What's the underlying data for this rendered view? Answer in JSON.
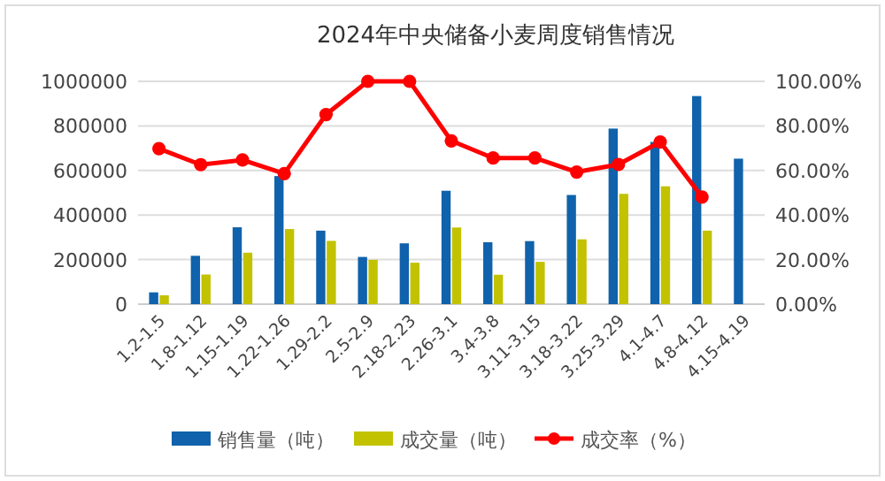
{
  "chart_data": {
    "type": "bar",
    "title": "2024年中央储备小麦周度销售情况",
    "categories": [
      "1.2-1.5",
      "1.8-1.12",
      "1.15-1.19",
      "1.22-1.26",
      "1.29-2.2",
      "2.5-2.9",
      "2.18-2.23",
      "2.26-3.1",
      "3.4-3.8",
      "3.11-3.15",
      "3.18-3.22",
      "3.25-3.29",
      "4.1-4.7",
      "4.8-4.12",
      "4.15-4.19"
    ],
    "series": [
      {
        "name": "销售量（吨）",
        "color": "#0f62ab",
        "values": [
          53000,
          217000,
          345000,
          575000,
          330000,
          212000,
          273000,
          509000,
          278000,
          283000,
          490000,
          788000,
          728000,
          934000,
          653000
        ]
      },
      {
        "name": "成交量（吨）",
        "color": "#c2c200",
        "values": [
          40000,
          133000,
          231000,
          337000,
          284000,
          199000,
          186000,
          344000,
          132000,
          190000,
          291000,
          495000,
          529000,
          330000,
          null
        ]
      },
      {
        "name": "成交率（%）",
        "type": "line",
        "axis": "y2",
        "color": "#ff0000",
        "marker": "circle",
        "values": [
          69.8,
          62.6,
          64.7,
          58.6,
          85.1,
          100,
          100,
          73.3,
          65.6,
          65.6,
          59.3,
          62.7,
          72.8,
          48.1,
          null
        ]
      }
    ],
    "ylim": [
      0,
      1000000
    ],
    "yticks": [
      0,
      200000,
      400000,
      600000,
      800000,
      1000000
    ],
    "y2lim": [
      0,
      100
    ],
    "y2ticks": [
      {
        "value": 0,
        "label": "0.00%"
      },
      {
        "value": 20,
        "label": "20.00%"
      },
      {
        "value": 40,
        "label": "40.00%"
      },
      {
        "value": 60,
        "label": "60.00%"
      },
      {
        "value": 80,
        "label": "80.00%"
      },
      {
        "value": 100,
        "label": "100.00%"
      }
    ],
    "grid": "y",
    "legend": "bottom"
  }
}
